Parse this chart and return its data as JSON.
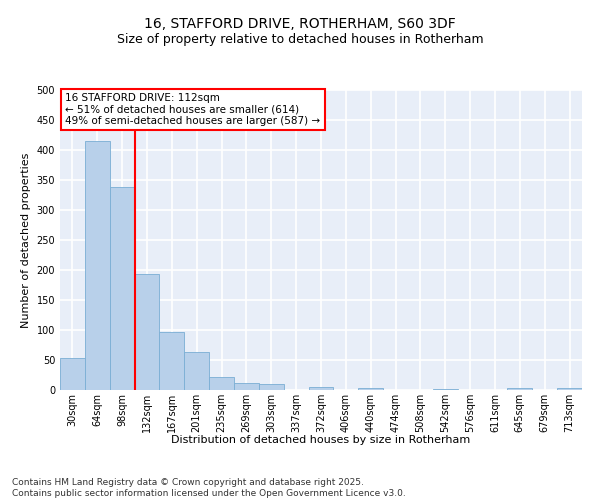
{
  "title": "16, STAFFORD DRIVE, ROTHERHAM, S60 3DF",
  "subtitle": "Size of property relative to detached houses in Rotherham",
  "xlabel": "Distribution of detached houses by size in Rotherham",
  "ylabel": "Number of detached properties",
  "categories": [
    "30sqm",
    "64sqm",
    "98sqm",
    "132sqm",
    "167sqm",
    "201sqm",
    "235sqm",
    "269sqm",
    "303sqm",
    "337sqm",
    "372sqm",
    "406sqm",
    "440sqm",
    "474sqm",
    "508sqm",
    "542sqm",
    "576sqm",
    "611sqm",
    "645sqm",
    "679sqm",
    "713sqm"
  ],
  "values": [
    53,
    415,
    338,
    193,
    97,
    63,
    22,
    12,
    10,
    0,
    5,
    0,
    3,
    0,
    0,
    2,
    0,
    0,
    3,
    0,
    3
  ],
  "bar_color": "#b8d0ea",
  "bar_edge_color": "#7aaed4",
  "vline_x": 2.5,
  "vline_color": "red",
  "annotation_text": "16 STAFFORD DRIVE: 112sqm\n← 51% of detached houses are smaller (614)\n49% of semi-detached houses are larger (587) →",
  "annotation_box_color": "white",
  "annotation_box_edge_color": "red",
  "ylim": [
    0,
    500
  ],
  "yticks": [
    0,
    50,
    100,
    150,
    200,
    250,
    300,
    350,
    400,
    450,
    500
  ],
  "footer": "Contains HM Land Registry data © Crown copyright and database right 2025.\nContains public sector information licensed under the Open Government Licence v3.0.",
  "background_color": "#e8eef8",
  "grid_color": "white",
  "title_fontsize": 10,
  "subtitle_fontsize": 9,
  "axis_label_fontsize": 8,
  "tick_fontsize": 7,
  "annotation_fontsize": 7.5,
  "footer_fontsize": 6.5
}
